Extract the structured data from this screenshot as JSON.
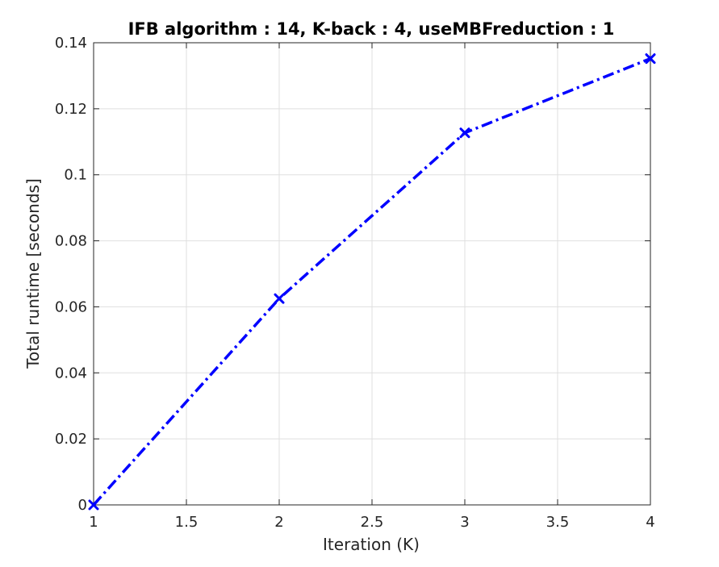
{
  "chart_data": {
    "type": "line",
    "title": "IFB algorithm : 14, K-back : 4, useMBFreduction : 1",
    "xlabel": "Iteration (K)",
    "ylabel": "Total runtime [seconds]",
    "xlim": [
      1,
      4
    ],
    "ylim": [
      0,
      0.14
    ],
    "xticks": [
      1,
      1.5,
      2,
      2.5,
      3,
      3.5,
      4
    ],
    "xtick_labels": [
      "1",
      "1.5",
      "2",
      "2.5",
      "3",
      "3.5",
      "4"
    ],
    "yticks": [
      0,
      0.02,
      0.04,
      0.06,
      0.08,
      0.1,
      0.12,
      0.14
    ],
    "ytick_labels": [
      "0",
      "0.02",
      "0.04",
      "0.06",
      "0.08",
      "0.1",
      "0.12",
      "0.14"
    ],
    "grid": true,
    "series": [
      {
        "x": [
          1,
          2,
          3,
          4
        ],
        "y": [
          0,
          0.0625,
          0.1127,
          0.1352
        ],
        "color": "#0000ff",
        "line_style": "dash-dot",
        "marker": "x"
      }
    ]
  }
}
